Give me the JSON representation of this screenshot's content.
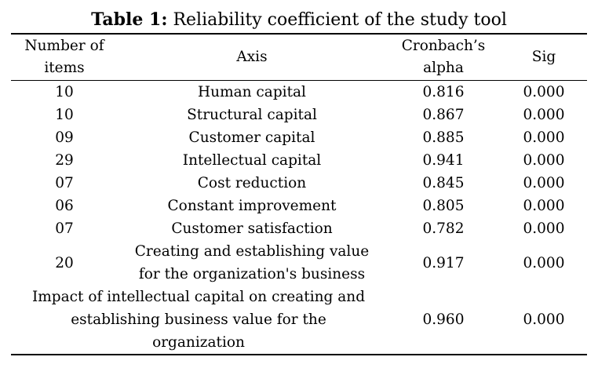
{
  "caption": {
    "label": "Table 1:",
    "text": " Reliability coefficient of the study tool"
  },
  "table": {
    "headers": {
      "number_of_items": "Number of items",
      "axis": "Axis",
      "alpha": "Cronbach’s alpha",
      "sig": "Sig"
    },
    "rows": [
      {
        "items": "10",
        "axis": "Human capital",
        "alpha": "0.816",
        "sig": "0.000"
      },
      {
        "items": "10",
        "axis": "Structural capital",
        "alpha": "0.867",
        "sig": "0.000"
      },
      {
        "items": "09",
        "axis": "Customer capital",
        "alpha": "0.885",
        "sig": "0.000"
      },
      {
        "items": "29",
        "axis": "Intellectual capital",
        "alpha": "0.941",
        "sig": "0.000"
      },
      {
        "items": "07",
        "axis": "Cost reduction",
        "alpha": "0.845",
        "sig": "0.000"
      },
      {
        "items": "06",
        "axis": "Constant improvement",
        "alpha": "0.805",
        "sig": "0.000"
      },
      {
        "items": "07",
        "axis": "Customer satisfaction",
        "alpha": "0.782",
        "sig": "0.000"
      },
      {
        "items": "20",
        "axis": "Creating and establishing value for the organization's business",
        "alpha": "0.917",
        "sig": "0.000"
      }
    ],
    "final_row": {
      "axis": "Impact of intellectual capital on creating and establishing business value for the organization",
      "alpha": "0.960",
      "sig": "0.000"
    }
  }
}
